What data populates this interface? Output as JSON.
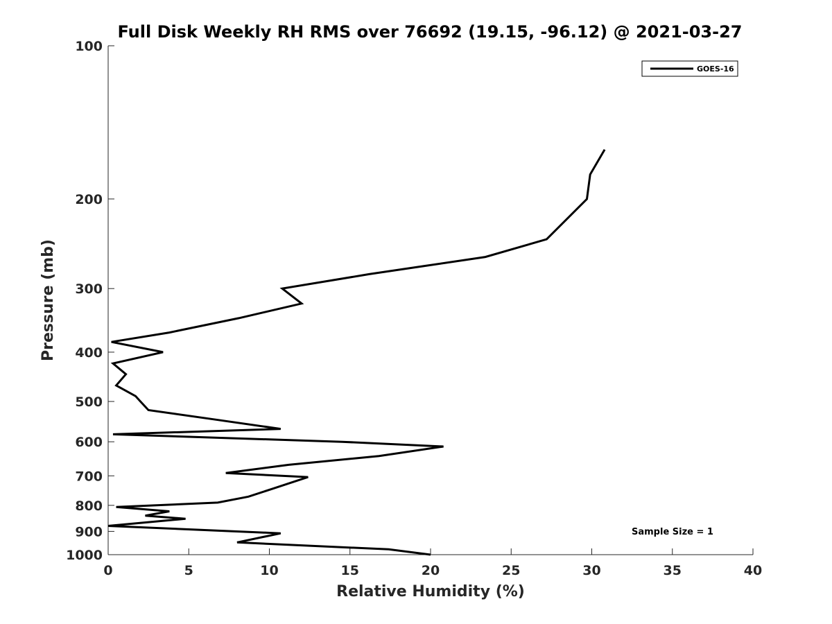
{
  "chart_data": {
    "type": "line",
    "title": "Full Disk Weekly RH RMS over 76692 (19.15, -96.12) @ 2021-03-27",
    "xlabel": "Relative Humidity (%)",
    "ylabel": "Pressure (mb)",
    "xlim": [
      0,
      40
    ],
    "ylim": [
      1000,
      100
    ],
    "y_scale": "log",
    "y_reversed": true,
    "x_ticks": [
      0,
      5,
      10,
      15,
      20,
      25,
      30,
      35,
      40
    ],
    "y_ticks": [
      100,
      200,
      300,
      400,
      500,
      600,
      700,
      800,
      900,
      1000
    ],
    "legend_position": "top-right",
    "grid": false,
    "series": [
      {
        "name": "GOES-16",
        "color": "#000000",
        "points": [
          {
            "x": 30.8,
            "y": 160
          },
          {
            "x": 29.9,
            "y": 179
          },
          {
            "x": 29.7,
            "y": 200
          },
          {
            "x": 27.2,
            "y": 240
          },
          {
            "x": 23.4,
            "y": 260
          },
          {
            "x": 16.2,
            "y": 281
          },
          {
            "x": 10.8,
            "y": 300
          },
          {
            "x": 12.0,
            "y": 321
          },
          {
            "x": 8.1,
            "y": 343
          },
          {
            "x": 3.8,
            "y": 366
          },
          {
            "x": 0.2,
            "y": 382
          },
          {
            "x": 3.4,
            "y": 400
          },
          {
            "x": 0.3,
            "y": 421
          },
          {
            "x": 1.1,
            "y": 442
          },
          {
            "x": 0.5,
            "y": 465
          },
          {
            "x": 1.7,
            "y": 488
          },
          {
            "x": 2.0,
            "y": 500
          },
          {
            "x": 2.5,
            "y": 520
          },
          {
            "x": 6.7,
            "y": 543
          },
          {
            "x": 10.7,
            "y": 566
          },
          {
            "x": 0.3,
            "y": 580
          },
          {
            "x": 14.5,
            "y": 600
          },
          {
            "x": 20.8,
            "y": 613
          },
          {
            "x": 16.8,
            "y": 640
          },
          {
            "x": 11.2,
            "y": 666
          },
          {
            "x": 7.3,
            "y": 691
          },
          {
            "x": 12.4,
            "y": 704
          },
          {
            "x": 10.2,
            "y": 742
          },
          {
            "x": 8.7,
            "y": 769
          },
          {
            "x": 6.8,
            "y": 790
          },
          {
            "x": 0.5,
            "y": 806
          },
          {
            "x": 3.8,
            "y": 822
          },
          {
            "x": 2.3,
            "y": 838
          },
          {
            "x": 4.8,
            "y": 850
          },
          {
            "x": 0.0,
            "y": 878
          },
          {
            "x": 10.7,
            "y": 908
          },
          {
            "x": 8.0,
            "y": 946
          },
          {
            "x": 17.4,
            "y": 976
          },
          {
            "x": 20.0,
            "y": 1000
          }
        ]
      }
    ],
    "legend": [
      {
        "label": "GOES-16",
        "color": "#000000"
      }
    ],
    "annotations": [
      {
        "text": "Sample Size = 1"
      }
    ]
  }
}
